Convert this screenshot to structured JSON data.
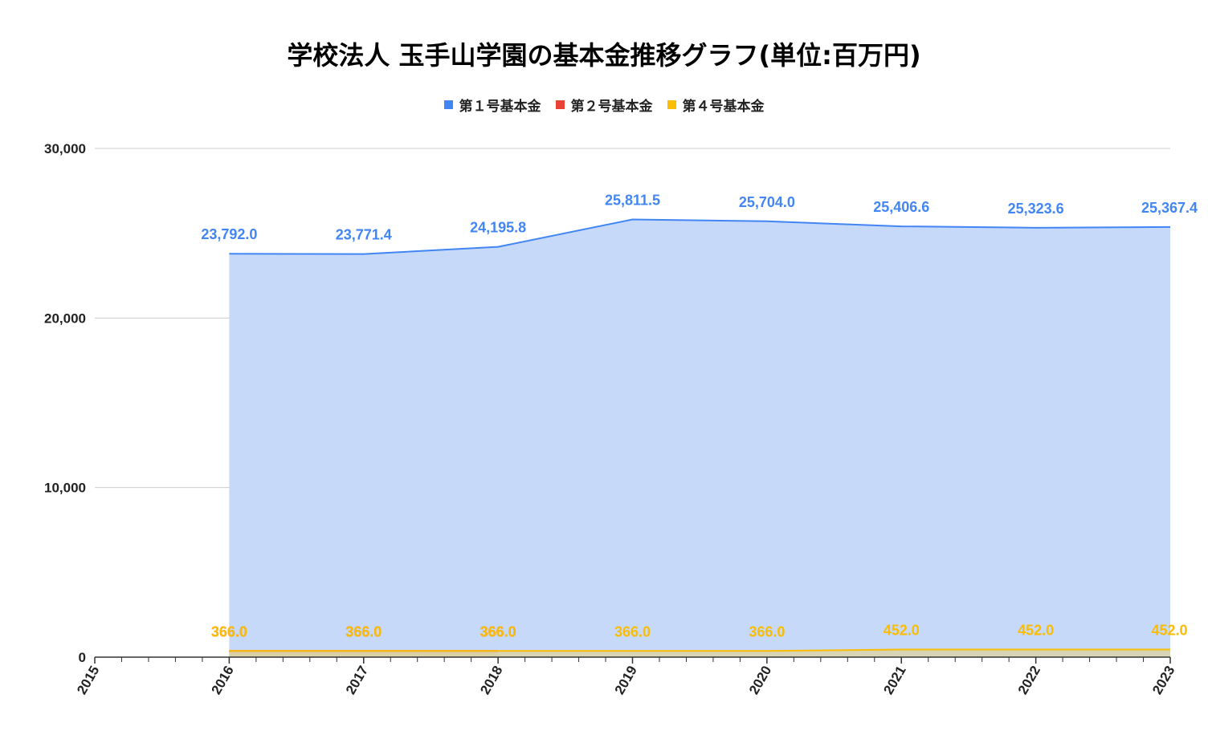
{
  "chart_data": {
    "type": "area",
    "title": "学校法人 玉手山学園の基本金推移グラフ(単位:百万円)",
    "x": [
      2015,
      2016,
      2017,
      2018,
      2019,
      2020,
      2021,
      2022,
      2023
    ],
    "x_tick_labels": [
      "2015",
      "2016",
      "2017",
      "2018",
      "2019",
      "2020",
      "2021",
      "2022",
      "2023"
    ],
    "ylim": [
      0,
      30000
    ],
    "y_ticks": [
      0,
      10000,
      20000,
      30000
    ],
    "y_tick_labels": [
      "0",
      "10,000",
      "20,000",
      "30,000"
    ],
    "grid": true,
    "legend_position": "top",
    "series": [
      {
        "name": "第１号基本金",
        "color": "#4285f4",
        "fill": "#c6d9f8",
        "values": [
          null,
          23792.0,
          23771.4,
          24195.8,
          25811.5,
          25704.0,
          25406.6,
          25323.6,
          25367.4
        ],
        "labels": [
          "",
          "23,792.0",
          "23,771.4",
          "24,195.8",
          "25,811.5",
          "25,704.0",
          "25,406.6",
          "25,323.6",
          "25,367.4"
        ]
      },
      {
        "name": "第２号基本金",
        "color": "#ea4335",
        "fill": "#e8ad6a",
        "values": [
          null,
          366.0,
          366.0,
          366.0,
          null,
          null,
          null,
          null,
          null
        ],
        "labels": [
          "",
          "366.0",
          "366.0",
          "366.0",
          "",
          "",
          "",
          "",
          ""
        ]
      },
      {
        "name": "第４号基本金",
        "color": "#fbbc04",
        "fill": "#d8d4ad",
        "values": [
          null,
          366.0,
          366.0,
          366.0,
          366.0,
          366.0,
          452.0,
          452.0,
          452.0
        ],
        "labels": [
          "",
          "366.0",
          "366.0",
          "366.0",
          "366.0",
          "366.0",
          "452.0",
          "452.0",
          "452.0"
        ]
      }
    ]
  }
}
